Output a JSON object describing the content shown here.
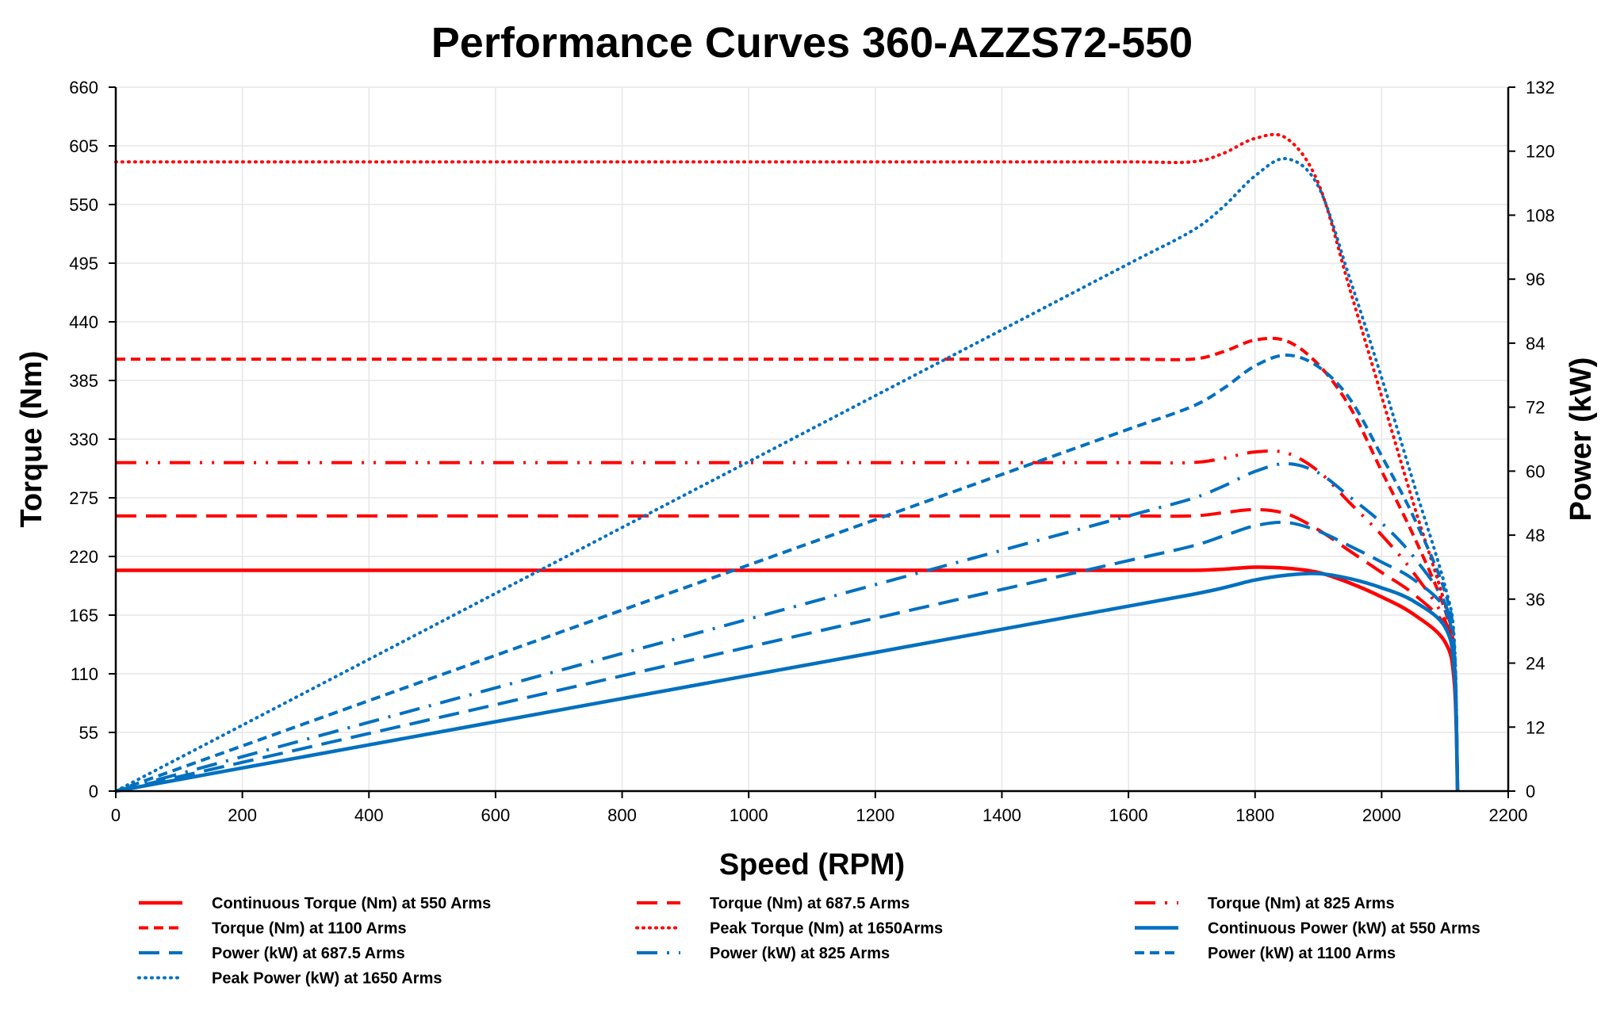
{
  "chart_data": {
    "type": "line",
    "title": "Performance Curves 360-AZZS72-550",
    "xlabel": "Speed (RPM)",
    "ylabel": "Torque (Nm)",
    "y2label": "Power (kW)",
    "xlim": [
      0,
      2200
    ],
    "ylim": [
      0,
      660
    ],
    "y2lim": [
      0,
      132
    ],
    "xticks": [
      0,
      200,
      400,
      600,
      800,
      1000,
      1200,
      1400,
      1600,
      1800,
      2000,
      2200
    ],
    "yticks": [
      0,
      55,
      110,
      165,
      220,
      275,
      330,
      385,
      440,
      495,
      550,
      605,
      660
    ],
    "y2ticks": [
      0,
      12,
      24,
      36,
      48,
      60,
      72,
      84,
      96,
      108,
      120,
      132
    ],
    "grid": true,
    "legend_position": "bottom",
    "colors": {
      "torque": "#FF0000",
      "power": "#0070C0"
    },
    "x": [
      0,
      200,
      400,
      600,
      800,
      1000,
      1200,
      1400,
      1600,
      1700,
      1750,
      1800,
      1850,
      1900,
      1950,
      2000,
      2050,
      2100,
      2115,
      2120
    ],
    "series": [
      {
        "name": "Continuous Torque (Nm) at 550 Arms",
        "axis": "left",
        "color": "#FF0000",
        "style": "solid",
        "values": [
          207,
          207,
          207,
          207,
          207,
          207,
          207,
          207,
          207,
          207,
          208,
          210,
          209,
          205,
          195,
          182,
          166,
          140,
          100,
          0
        ]
      },
      {
        "name": "Torque (Nm) at 687.5 Arms",
        "axis": "left",
        "color": "#FF0000",
        "style": "long-dash",
        "values": [
          258,
          258,
          258,
          258,
          258,
          258,
          258,
          258,
          258,
          258,
          261,
          264,
          260,
          245,
          225,
          205,
          185,
          155,
          110,
          0
        ]
      },
      {
        "name": "Torque (Nm) at 825 Arms",
        "axis": "left",
        "color": "#FF0000",
        "style": "long-dash-dot-dot",
        "values": [
          308,
          308,
          308,
          308,
          308,
          308,
          308,
          308,
          308,
          308,
          312,
          318,
          317,
          300,
          270,
          240,
          205,
          160,
          115,
          0
        ]
      },
      {
        "name": "Torque (Nm) at 1100 Arms",
        "axis": "left",
        "color": "#FF0000",
        "style": "dash",
        "values": [
          405,
          405,
          405,
          405,
          405,
          405,
          405,
          405,
          405,
          405,
          412,
          423,
          422,
          400,
          360,
          300,
          240,
          170,
          120,
          0
        ]
      },
      {
        "name": "Peak Torque (Nm) at 1650Arms",
        "axis": "left",
        "color": "#FF0000",
        "style": "dot",
        "values": [
          590,
          590,
          590,
          590,
          590,
          590,
          590,
          590,
          590,
          590,
          598,
          612,
          612,
          570,
          470,
          370,
          270,
          175,
          125,
          0
        ]
      },
      {
        "name": "Continuous Power (kW) at 550 Arms",
        "axis": "right",
        "color": "#0070C0",
        "style": "solid",
        "values": [
          0,
          4.34,
          8.67,
          13.0,
          17.34,
          21.68,
          26.0,
          30.35,
          34.68,
          36.85,
          38.12,
          39.58,
          40.49,
          40.79,
          39.83,
          38.12,
          35.64,
          30.79,
          22.15,
          0
        ]
      },
      {
        "name": "Power (kW) at 687.5 Arms",
        "axis": "right",
        "color": "#0070C0",
        "style": "long-dash",
        "values": [
          0,
          5.4,
          10.81,
          16.21,
          21.61,
          27.02,
          32.42,
          37.82,
          43.23,
          45.93,
          47.83,
          49.76,
          50.37,
          48.75,
          45.95,
          42.94,
          39.72,
          34.09,
          24.36,
          0
        ]
      },
      {
        "name": "Power (kW) at 825 Arms",
        "axis": "right",
        "color": "#0070C0",
        "style": "long-dash-dot",
        "values": [
          0,
          6.45,
          12.9,
          19.35,
          25.8,
          32.25,
          38.71,
          45.16,
          51.61,
          54.83,
          57.18,
          59.94,
          61.41,
          59.69,
          55.13,
          50.27,
          44.0,
          35.19,
          25.47,
          0
        ]
      },
      {
        "name": "Power (kW) at 1100 Arms",
        "axis": "right",
        "color": "#0070C0",
        "style": "dash",
        "values": [
          0,
          8.48,
          16.96,
          25.45,
          33.93,
          42.41,
          50.89,
          59.38,
          67.86,
          72.1,
          75.5,
          79.73,
          81.76,
          79.59,
          73.51,
          62.83,
          51.52,
          37.38,
          26.58,
          0
        ]
      },
      {
        "name": "Peak Power (kW) at 1650 Arms",
        "axis": "right",
        "color": "#0070C0",
        "style": "dot",
        "values": [
          0,
          12.36,
          24.71,
          37.07,
          49.43,
          61.78,
          74.14,
          86.5,
          98.86,
          105.03,
          109.59,
          115.36,
          118.57,
          113.41,
          95.98,
          77.49,
          57.96,
          38.49,
          27.69,
          0
        ]
      }
    ]
  }
}
